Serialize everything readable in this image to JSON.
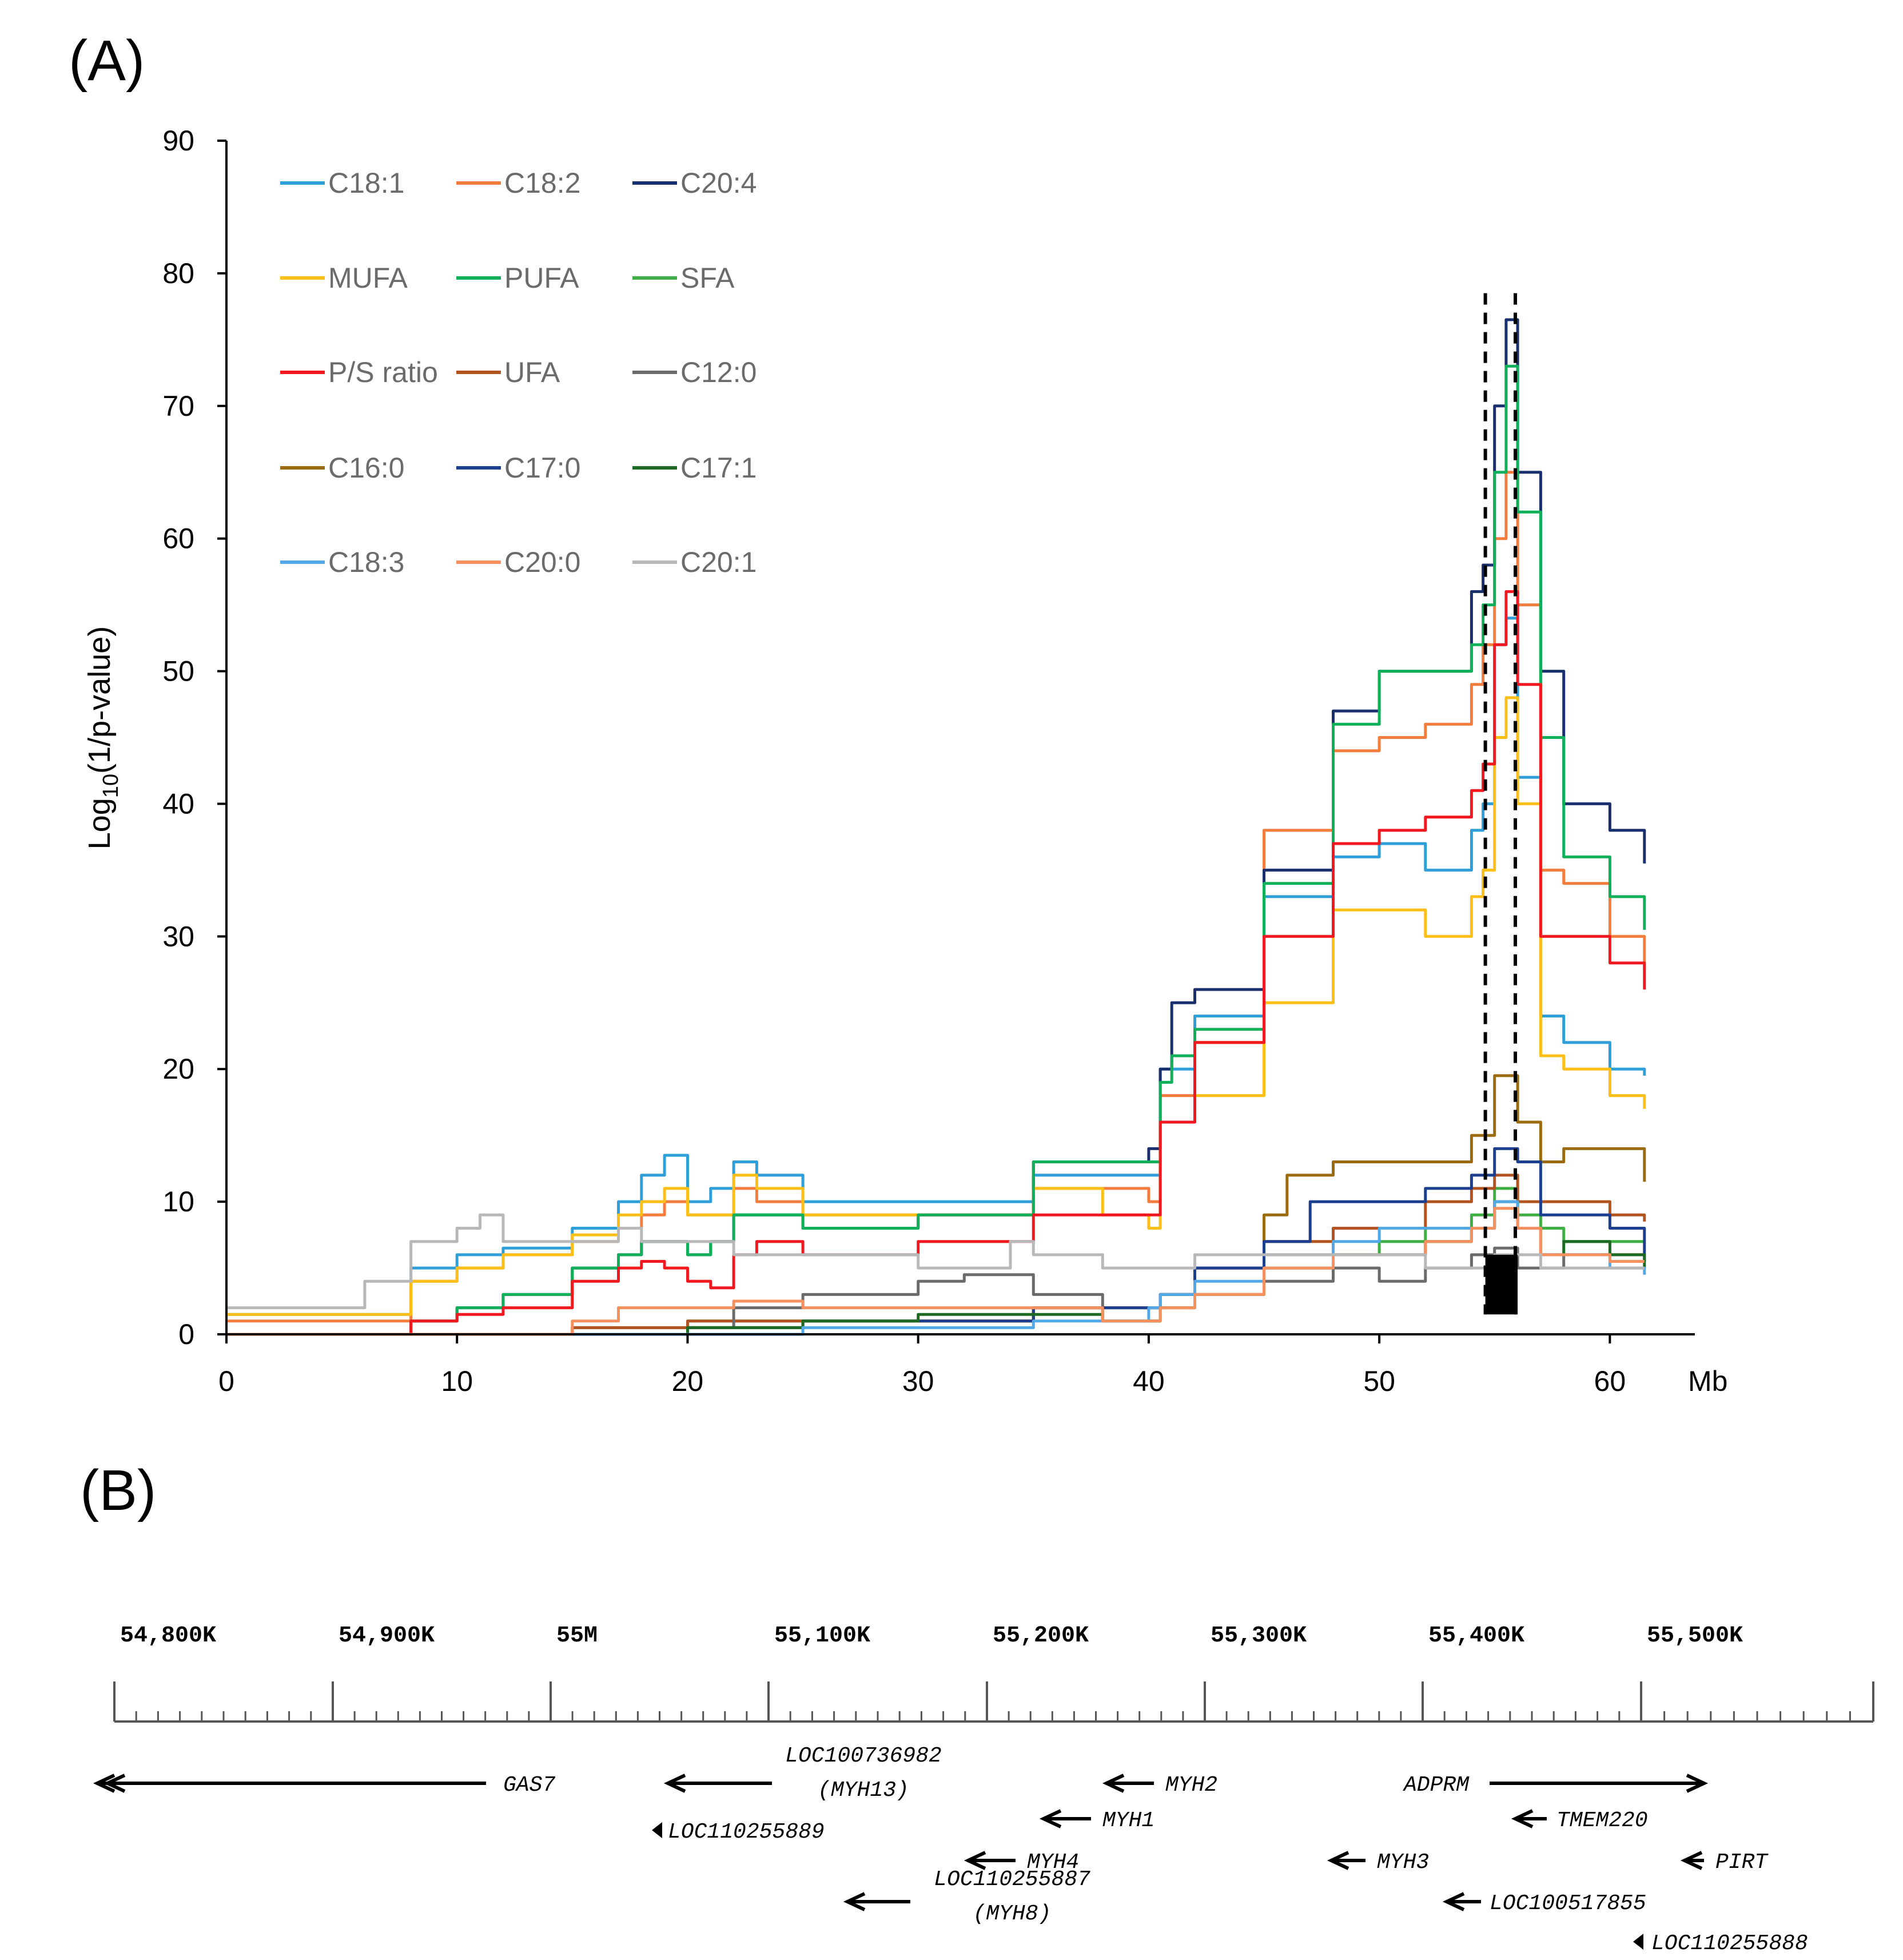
{
  "panels": {
    "a_label": "(A)",
    "b_label": "(B)"
  },
  "chart_data": {
    "type": "line",
    "title": "",
    "xlabel": "Mb",
    "ylabel_main": "Log",
    "ylabel_sub": "10",
    "ylabel_rest": "(1/p-value)",
    "xlim": [
      0,
      62
    ],
    "ylim": [
      0,
      90
    ],
    "xticks": [
      0,
      10,
      20,
      30,
      40,
      50,
      60
    ],
    "yticks": [
      0,
      10,
      20,
      30,
      40,
      50,
      60,
      70,
      80,
      90
    ],
    "dashed_lines_x": [
      54.6,
      55.9
    ],
    "dashed_lines_top": 78.5,
    "highlight_box": {
      "x0": 54.6,
      "x1": 56.0,
      "y0": 1.5,
      "y1": 6.0
    },
    "series": [
      {
        "name": "C18:1",
        "color": "#2e9fd9",
        "x": [
          0,
          5,
          8,
          10,
          12,
          15,
          17,
          18,
          19,
          20,
          21,
          22,
          23,
          25,
          30,
          35,
          38,
          40,
          40.5,
          42,
          45,
          48,
          50,
          52,
          54,
          54.5,
          55,
          55.5,
          56,
          57,
          58,
          60,
          61.5
        ],
        "values": [
          1.5,
          1.5,
          5,
          6,
          6.5,
          8,
          10,
          12,
          13.5,
          10,
          11,
          13,
          12,
          10,
          10,
          12,
          12,
          12,
          20,
          24,
          33,
          36,
          37,
          35,
          38,
          40,
          52,
          54,
          42,
          24,
          22,
          20,
          19.5
        ]
      },
      {
        "name": "C18:2",
        "color": "#f47c3c",
        "x": [
          0,
          5,
          8,
          10,
          12,
          15,
          17,
          18,
          19,
          20,
          21,
          22,
          23,
          25,
          30,
          35,
          38,
          40,
          40.5,
          42,
          45,
          48,
          50,
          52,
          54,
          54.5,
          55,
          55.5,
          56,
          57,
          58,
          60,
          61.5
        ],
        "values": [
          1,
          1,
          4,
          5,
          6,
          7,
          8,
          9,
          10,
          9,
          9,
          11,
          10,
          9,
          9,
          11,
          11,
          10,
          18,
          22,
          38,
          44,
          45,
          46,
          49,
          52,
          60,
          65,
          55,
          35,
          34,
          30,
          27.5
        ]
      },
      {
        "name": "C20:4",
        "color": "#1a2f6e",
        "x": [
          0,
          5,
          8,
          10,
          12,
          15,
          17,
          18,
          19,
          20,
          21,
          22,
          23,
          25,
          30,
          35,
          38,
          40,
          40.5,
          41,
          42,
          45,
          48,
          50,
          52,
          54,
          54.5,
          55,
          55.5,
          56,
          57,
          58,
          60,
          61.5
        ],
        "values": [
          0,
          0,
          1,
          2,
          3,
          5,
          6,
          7,
          7,
          6,
          7,
          9,
          9,
          8,
          9,
          13,
          13,
          14,
          20,
          25,
          26,
          35,
          47,
          50,
          50,
          56,
          58,
          70,
          76.5,
          65,
          50,
          40,
          38,
          35.5
        ]
      },
      {
        "name": "MUFA",
        "color": "#fcbf18",
        "x": [
          0,
          5,
          8,
          10,
          12,
          15,
          17,
          18,
          19,
          20,
          21,
          22,
          23,
          25,
          30,
          35,
          38,
          40,
          40.5,
          42,
          45,
          48,
          50,
          52,
          54,
          54.5,
          55,
          55.5,
          56,
          57,
          58,
          60,
          61.5
        ],
        "values": [
          1.5,
          1.5,
          4,
          5,
          6,
          7.5,
          9,
          10,
          11,
          9,
          9,
          12,
          11,
          9,
          9,
          11,
          9,
          8,
          16,
          18,
          25,
          32,
          32,
          30,
          33,
          35,
          45,
          48,
          40,
          21,
          20,
          18,
          17
        ]
      },
      {
        "name": "PUFA",
        "color": "#10b05a",
        "x": [
          0,
          5,
          8,
          10,
          12,
          15,
          17,
          18,
          19,
          20,
          21,
          22,
          23,
          25,
          30,
          35,
          38,
          40,
          40.5,
          41,
          42,
          45,
          48,
          50,
          52,
          54,
          54.5,
          55,
          55.5,
          56,
          57,
          58,
          60,
          61.5
        ],
        "values": [
          0,
          0,
          1,
          2,
          3,
          5,
          6,
          7,
          7,
          6,
          7,
          9,
          9,
          8,
          9,
          13,
          13,
          13,
          19,
          21,
          23,
          34,
          46,
          50,
          50,
          52,
          55,
          65,
          73,
          62,
          45,
          36,
          33,
          30.5
        ]
      },
      {
        "name": "SFA",
        "color": "#3fae44",
        "x": [
          0,
          5,
          10,
          15,
          20,
          25,
          30,
          35,
          38,
          40,
          40.5,
          42,
          45,
          48,
          50,
          52,
          54,
          55,
          56,
          57,
          58,
          60,
          61.5
        ],
        "values": [
          0,
          0,
          0,
          0.5,
          1,
          1,
          1,
          2,
          2,
          2,
          3,
          5,
          6,
          6,
          7,
          8,
          9,
          11,
          9,
          8,
          7,
          7,
          7
        ]
      },
      {
        "name": "P/S ratio",
        "color": "#f1191f",
        "x": [
          0,
          5,
          8,
          10,
          12,
          15,
          17,
          18,
          19,
          20,
          21,
          22,
          23,
          25,
          30,
          35,
          38,
          40,
          40.5,
          42,
          45,
          48,
          50,
          52,
          54,
          54.5,
          55,
          55.5,
          56,
          57,
          58,
          60,
          61.5
        ],
        "values": [
          0,
          0,
          1,
          1.5,
          2,
          4,
          5,
          5.5,
          5,
          4,
          3.5,
          6,
          7,
          6,
          7,
          9,
          9,
          9,
          16,
          22,
          30,
          37,
          38,
          39,
          41,
          43,
          52,
          56,
          49,
          30,
          30,
          28,
          26
        ]
      },
      {
        "name": "UFA",
        "color": "#b3531f",
        "x": [
          0,
          5,
          10,
          15,
          20,
          25,
          30,
          35,
          38,
          40,
          40.5,
          42,
          45,
          48,
          50,
          52,
          54,
          55,
          56,
          57,
          58,
          60,
          61.5
        ],
        "values": [
          0,
          0,
          0,
          0.5,
          1,
          1,
          1,
          2,
          2,
          2,
          3,
          5,
          7,
          8,
          8,
          10,
          11,
          12,
          10,
          10,
          10,
          9,
          8.5
        ]
      },
      {
        "name": "C12:0",
        "color": "#6b6b6b",
        "x": [
          0,
          5,
          10,
          15,
          20,
          22,
          25,
          30,
          32,
          35,
          38,
          40,
          40.5,
          42,
          45,
          48,
          50,
          52,
          54,
          55,
          56,
          57,
          58,
          60,
          61.5
        ],
        "values": [
          0,
          0,
          0,
          0,
          0.5,
          2,
          3,
          4,
          4.5,
          3,
          1,
          1,
          2,
          3,
          4,
          5,
          4,
          5,
          6,
          6.5,
          5,
          5,
          6,
          6,
          5.5
        ]
      },
      {
        "name": "C16:0",
        "color": "#9c6b10",
        "x": [
          0,
          5,
          10,
          15,
          20,
          25,
          30,
          35,
          38,
          40,
          40.5,
          42,
          45,
          46,
          48,
          50,
          52,
          54,
          55,
          56,
          57,
          58,
          60,
          61.5
        ],
        "values": [
          0,
          0,
          0,
          0,
          0.5,
          1,
          1,
          2,
          2,
          2,
          3,
          5,
          9,
          12,
          13,
          13,
          13,
          15,
          19.5,
          16,
          13,
          14,
          14,
          11.5
        ]
      },
      {
        "name": "C17:0",
        "color": "#1d3f8f",
        "x": [
          0,
          5,
          10,
          15,
          20,
          25,
          30,
          35,
          38,
          40,
          40.5,
          42,
          45,
          47,
          48,
          50,
          52,
          54,
          55,
          56,
          57,
          58,
          60,
          61.5
        ],
        "values": [
          0,
          0,
          0,
          0,
          0.5,
          1,
          1,
          2,
          2,
          2,
          3,
          5,
          7,
          10,
          10,
          10,
          11,
          12,
          14,
          13,
          9,
          9,
          8,
          6
        ]
      },
      {
        "name": "C17:1",
        "color": "#1d6a22",
        "x": [
          0,
          5,
          10,
          15,
          20,
          25,
          30,
          35,
          38,
          40,
          40.5,
          42,
          45,
          48,
          50,
          52,
          54,
          55,
          56,
          57,
          58,
          60,
          61.5
        ],
        "values": [
          0,
          0,
          0,
          0,
          0.5,
          1,
          1.5,
          1.5,
          1,
          1,
          2,
          3,
          5,
          6,
          6,
          7,
          8,
          10,
          8,
          6,
          7,
          6,
          5
        ]
      },
      {
        "name": "C18:3",
        "color": "#53a9e8",
        "x": [
          0,
          5,
          10,
          15,
          20,
          25,
          30,
          35,
          38,
          40,
          40.5,
          42,
          45,
          48,
          50,
          52,
          54,
          55,
          56,
          57,
          58,
          60,
          61.5
        ],
        "values": [
          0,
          0,
          0,
          0,
          0,
          0.5,
          0.5,
          1,
          1,
          2,
          3,
          4,
          5,
          7,
          8,
          8,
          8,
          10,
          8,
          6,
          6,
          5,
          4.5
        ]
      },
      {
        "name": "C20:0",
        "color": "#f6905e",
        "x": [
          0,
          5,
          10,
          15,
          17,
          20,
          22,
          25,
          30,
          35,
          38,
          40,
          40.5,
          42,
          45,
          48,
          50,
          52,
          54,
          55,
          56,
          57,
          58,
          60,
          61.5
        ],
        "values": [
          0,
          0,
          0,
          1,
          2,
          2,
          2.5,
          2,
          2,
          2,
          1,
          1,
          2,
          3,
          5,
          6,
          6,
          7,
          8,
          9.5,
          8,
          6,
          6,
          5.5,
          5.5
        ]
      },
      {
        "name": "C20:1",
        "color": "#b8b8b8",
        "x": [
          0,
          5,
          6,
          8,
          10,
          11,
          12,
          15,
          17,
          18,
          20,
          22,
          25,
          30,
          32,
          34,
          35,
          38,
          40,
          42,
          45,
          48,
          50,
          52,
          54,
          55,
          56,
          57,
          58,
          60,
          61.5
        ],
        "values": [
          2,
          2,
          4,
          7,
          8,
          9,
          7,
          7,
          8,
          7,
          7,
          6,
          6,
          5,
          5,
          7,
          6,
          5,
          5,
          6,
          6,
          6,
          6,
          5,
          5,
          6,
          6,
          5,
          5,
          5,
          5
        ]
      }
    ]
  },
  "gene_track": {
    "scale_labels": [
      "54,800K",
      "54,900K",
      "55M",
      "55,100K",
      "55,200K",
      "55,300K",
      "55,400K",
      "55,500K"
    ],
    "genes": [
      {
        "name": "GAS7",
        "name2": ""
      },
      {
        "name": "LOC100736982",
        "name2": "(MYH13)"
      },
      {
        "name": "LOC110255889",
        "name2": ""
      },
      {
        "name": "MYH2",
        "name2": ""
      },
      {
        "name": "MYH1",
        "name2": ""
      },
      {
        "name": "MYH4",
        "name2": ""
      },
      {
        "name": "LOC110255887",
        "name2": "(MYH8)"
      },
      {
        "name": "ADPRM",
        "name2": ""
      },
      {
        "name": "TMEM220",
        "name2": ""
      },
      {
        "name": "MYH3",
        "name2": ""
      },
      {
        "name": "PIRT",
        "name2": ""
      },
      {
        "name": "LOC100517855",
        "name2": ""
      },
      {
        "name": "LOC110255888",
        "name2": ""
      }
    ]
  }
}
